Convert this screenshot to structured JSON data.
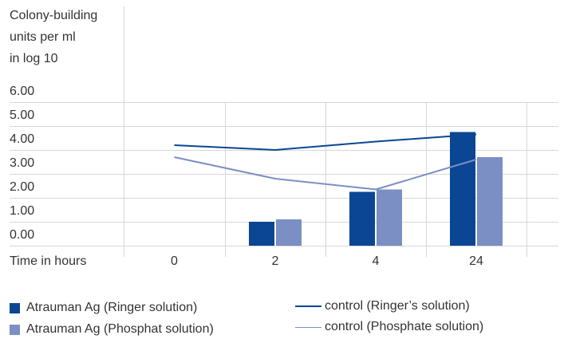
{
  "chart_data": {
    "type": "bar",
    "ylabel_lines": [
      "Colony-building",
      "units per ml",
      "in log 10"
    ],
    "xlabel": "Time in hours",
    "categories": [
      "0",
      "2",
      "4",
      "24"
    ],
    "y_ticks": [
      "0.00",
      "1.00",
      "2.00",
      "3.00",
      "4.00",
      "5.00",
      "6.00"
    ],
    "ylim": [
      0,
      6
    ],
    "grid": true,
    "legend_position": "bottom",
    "series": [
      {
        "name": "Atrauman Ag (Ringer solution)",
        "type": "bar",
        "color": "#0a4693",
        "values": [
          null,
          1.0,
          2.25,
          4.75
        ]
      },
      {
        "name": "Atrauman Ag (Phosphat solution)",
        "type": "bar",
        "color": "#7b8fc4",
        "values": [
          null,
          1.1,
          2.35,
          3.7
        ]
      },
      {
        "name": "control (Ringer’s solution)",
        "type": "line",
        "color": "#0a4693",
        "values": [
          4.2,
          4.0,
          4.35,
          4.65
        ]
      },
      {
        "name": "control (Phosphate solution)",
        "type": "line",
        "color": "#7b8fc4",
        "values": [
          3.7,
          2.8,
          2.35,
          3.6
        ]
      }
    ]
  }
}
